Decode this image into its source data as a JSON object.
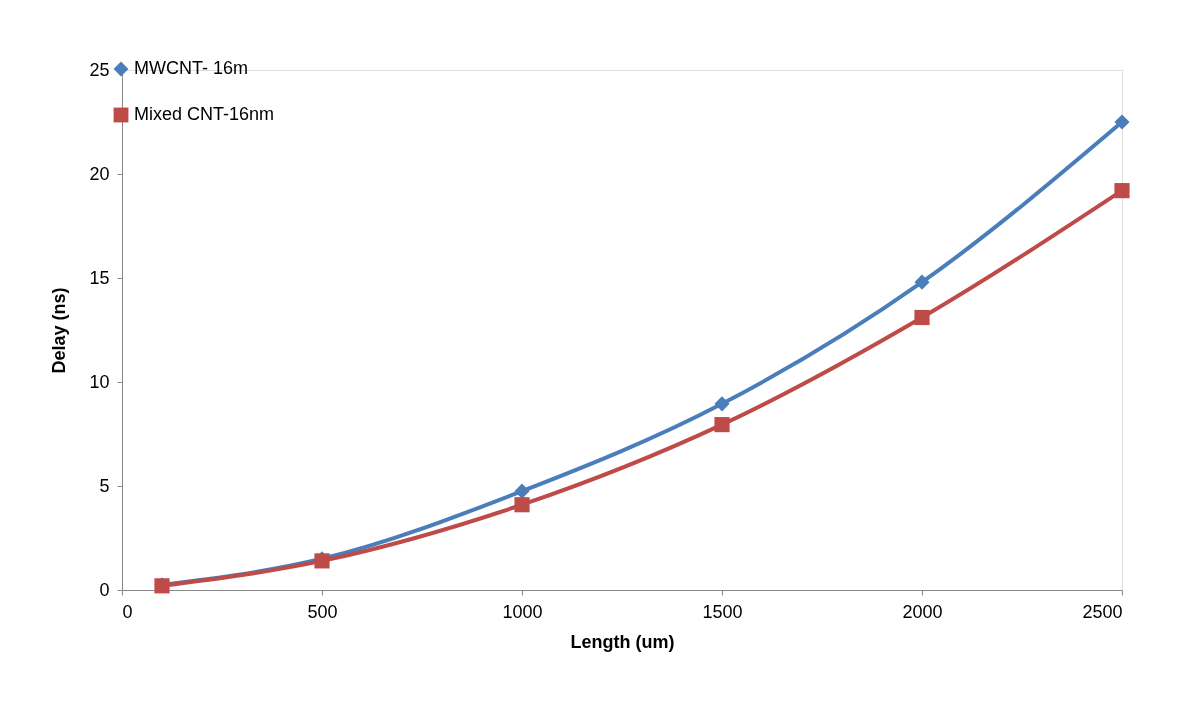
{
  "chart_data": {
    "type": "line",
    "xlabel": "Length (um)",
    "ylabel": "Delay (ns)",
    "x": [
      100,
      500,
      1000,
      1500,
      2000,
      2500
    ],
    "series": [
      {
        "name": "MWCNT- 16m",
        "color": "#4a7ebb",
        "marker": "diamond",
        "values": [
          0.25,
          1.5,
          4.75,
          8.95,
          14.8,
          22.5
        ]
      },
      {
        "name": "Mixed CNT-16nm",
        "color": "#be4b48",
        "marker": "square",
        "values": [
          0.2,
          1.4,
          4.1,
          7.95,
          13.1,
          19.2
        ]
      }
    ],
    "xlim": [
      0,
      2500
    ],
    "xticks": [
      0,
      500,
      1000,
      1500,
      2000,
      2500
    ],
    "ylim": [
      0,
      25
    ],
    "yticks": [
      0,
      5,
      10,
      15,
      20,
      25
    ],
    "grid": false,
    "legend": "top left",
    "line_style": "solid"
  }
}
